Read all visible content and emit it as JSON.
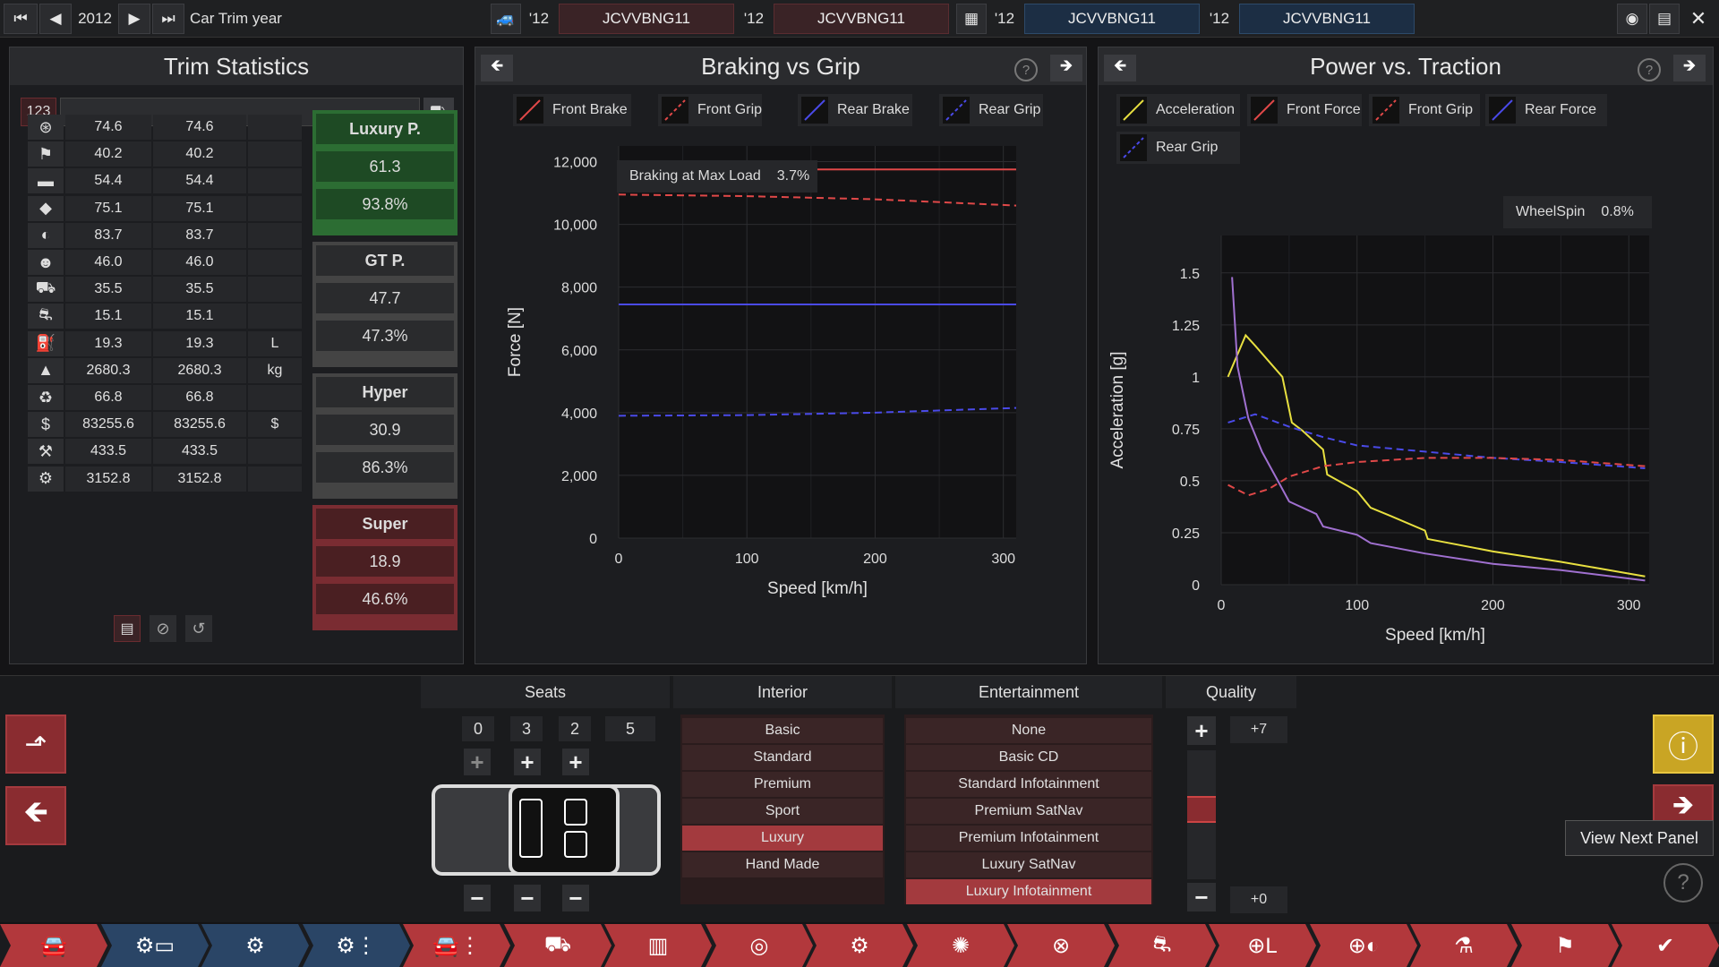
{
  "topbar": {
    "year": "2012",
    "title": "Car Trim year",
    "compare": [
      {
        "year": "'12",
        "name": "JCVVBNG11"
      },
      {
        "year": "'12",
        "name": "JCVVBNG11"
      },
      {
        "year": "'12",
        "name": "JCVVBNG11"
      },
      {
        "year": "'12",
        "name": "JCVVBNG11"
      }
    ]
  },
  "trim_stats": {
    "title": "Trim Statistics",
    "search_badge": "123",
    "search_value": "",
    "rows": [
      {
        "icon": "steering-wheel-icon",
        "a": "74.6",
        "b": "74.6",
        "unit": ""
      },
      {
        "icon": "race-flag-icon",
        "a": "40.2",
        "b": "40.2",
        "unit": ""
      },
      {
        "icon": "seat-icon",
        "a": "54.4",
        "b": "54.4",
        "unit": ""
      },
      {
        "icon": "diamond-icon",
        "a": "75.1",
        "b": "75.1",
        "unit": ""
      },
      {
        "icon": "safety-icon",
        "a": "83.7",
        "b": "83.7",
        "unit": ""
      },
      {
        "icon": "passengers-icon",
        "a": "46.0",
        "b": "46.0",
        "unit": ""
      },
      {
        "icon": "cargo-car-icon",
        "a": "35.5",
        "b": "35.5",
        "unit": ""
      },
      {
        "icon": "offroad-car-icon",
        "a": "15.1",
        "b": "15.1",
        "unit": ""
      },
      {
        "icon": "fuel-tank-icon",
        "a": "19.3",
        "b": "19.3",
        "unit": "L"
      },
      {
        "icon": "weight-icon",
        "a": "2680.3",
        "b": "2680.3",
        "unit": "kg"
      },
      {
        "icon": "environment-icon",
        "a": "66.8",
        "b": "66.8",
        "unit": ""
      },
      {
        "icon": "cost-icon",
        "a": "83255.6",
        "b": "83255.6",
        "unit": "$"
      },
      {
        "icon": "manufacturing-icon",
        "a": "433.5",
        "b": "433.5",
        "unit": ""
      },
      {
        "icon": "engineering-icon",
        "a": "3152.8",
        "b": "3152.8",
        "unit": ""
      }
    ],
    "markets": [
      {
        "name": "Luxury P.",
        "score": "61.3",
        "pct": "93.8%",
        "color": "#1e4a24",
        "border": "#2c6d33"
      },
      {
        "name": "GT P.",
        "score": "47.7",
        "pct": "47.3%",
        "color": "#2a2b2d",
        "border": "#444"
      },
      {
        "name": "Hyper",
        "score": "30.9",
        "pct": "86.3%",
        "color": "#2a2b2d",
        "border": "#444"
      },
      {
        "name": "Super",
        "score": "18.9",
        "pct": "46.6%",
        "color": "#4a1f22",
        "border": "#7a2c32"
      }
    ]
  },
  "braking": {
    "title": "Braking vs Grip",
    "legend": [
      {
        "label": "Front Brake",
        "color": "#e04848",
        "dashed": false
      },
      {
        "label": "Front Grip",
        "color": "#e04848",
        "dashed": true
      },
      {
        "label": "Rear Brake",
        "color": "#4a4ae8",
        "dashed": false
      },
      {
        "label": "Rear Grip",
        "color": "#4a4ae8",
        "dashed": true
      }
    ],
    "annotation_label": "Braking at Max Load",
    "annotation_value": "3.7%"
  },
  "power": {
    "title": "Power vs. Traction",
    "legend": [
      {
        "label": "Acceleration",
        "color": "#e8e040",
        "dashed": false
      },
      {
        "label": "Front Force",
        "color": "#e04848",
        "dashed": false
      },
      {
        "label": "Front Grip",
        "color": "#e04848",
        "dashed": true
      },
      {
        "label": "Rear Force",
        "color": "#4a4ae8",
        "dashed": false
      },
      {
        "label": "Rear Grip",
        "color": "#4a4ae8",
        "dashed": true
      }
    ],
    "annotation_label": "WheelSpin",
    "annotation_value": "0.8%"
  },
  "chart_data": [
    {
      "type": "line",
      "title": "Braking vs Grip",
      "xlabel": "Speed [km/h]",
      "ylabel": "Force [N]",
      "xlim": [
        0,
        310
      ],
      "ylim": [
        0,
        12500
      ],
      "xticks": [
        "0",
        "100",
        "200",
        "300"
      ],
      "yticks": [
        "0",
        "2,000",
        "4,000",
        "6,000",
        "8,000",
        "10,000",
        "12,000"
      ],
      "series": [
        {
          "name": "Front Brake",
          "color": "#e04848",
          "dashed": false,
          "x": [
            0,
            310
          ],
          "y": [
            11750,
            11750
          ]
        },
        {
          "name": "Front Grip",
          "color": "#e04848",
          "dashed": true,
          "x": [
            0,
            100,
            200,
            310
          ],
          "y": [
            10950,
            10900,
            10800,
            10600
          ]
        },
        {
          "name": "Rear Brake",
          "color": "#4a4ae8",
          "dashed": false,
          "x": [
            0,
            310
          ],
          "y": [
            7450,
            7450
          ]
        },
        {
          "name": "Rear Grip",
          "color": "#4a4ae8",
          "dashed": true,
          "x": [
            0,
            100,
            200,
            310
          ],
          "y": [
            3900,
            3920,
            4000,
            4150
          ]
        }
      ]
    },
    {
      "type": "line",
      "title": "Power vs. Traction",
      "xlabel": "Speed [km/h]",
      "ylabel": "Acceleration [g]",
      "xlim": [
        0,
        315
      ],
      "ylim": [
        0,
        1.68
      ],
      "xticks": [
        "0",
        "100",
        "200",
        "300"
      ],
      "yticks": [
        "0",
        "0.25",
        "0.5",
        "0.75",
        "1",
        "1.25",
        "1.5"
      ],
      "series": [
        {
          "name": "Acceleration",
          "color": "#e8e040",
          "dashed": false,
          "x": [
            5,
            18,
            25,
            45,
            52,
            60,
            75,
            78,
            100,
            110,
            125,
            150,
            152,
            200,
            250,
            312
          ],
          "y": [
            1.0,
            1.2,
            1.15,
            1.0,
            0.78,
            0.74,
            0.65,
            0.53,
            0.45,
            0.37,
            0.33,
            0.26,
            0.22,
            0.16,
            0.11,
            0.04
          ]
        },
        {
          "name": "Rear Force",
          "color": "#a070d0",
          "dashed": false,
          "x": [
            8,
            12,
            20,
            30,
            40,
            50,
            70,
            75,
            100,
            110,
            150,
            200,
            250,
            312
          ],
          "y": [
            1.48,
            1.05,
            0.8,
            0.64,
            0.52,
            0.4,
            0.34,
            0.28,
            0.24,
            0.2,
            0.15,
            0.1,
            0.07,
            0.02
          ]
        },
        {
          "name": "Rear Grip",
          "color": "#4a4ae8",
          "dashed": true,
          "x": [
            5,
            25,
            50,
            75,
            100,
            150,
            200,
            250,
            312
          ],
          "y": [
            0.78,
            0.82,
            0.76,
            0.71,
            0.67,
            0.64,
            0.61,
            0.59,
            0.56
          ]
        },
        {
          "name": "Front Grip",
          "color": "#e04848",
          "dashed": true,
          "x": [
            5,
            20,
            35,
            50,
            75,
            100,
            150,
            200,
            250,
            312
          ],
          "y": [
            0.48,
            0.43,
            0.46,
            0.52,
            0.57,
            0.59,
            0.61,
            0.61,
            0.6,
            0.57
          ]
        }
      ]
    }
  ],
  "seats": {
    "title": "Seats",
    "counts": [
      "0",
      "3",
      "2",
      "5"
    ]
  },
  "interior": {
    "title": "Interior",
    "options": [
      "Basic",
      "Standard",
      "Premium",
      "Sport",
      "Luxury",
      "Hand Made"
    ],
    "selected": "Luxury"
  },
  "entertainment": {
    "title": "Entertainment",
    "options": [
      "None",
      "Basic CD",
      "Standard Infotainment",
      "Premium SatNav",
      "Premium Infotainment",
      "Luxury SatNav",
      "Luxury Infotainment"
    ],
    "selected": "Luxury Infotainment"
  },
  "quality": {
    "title": "Quality",
    "max": "+7",
    "min": "+0",
    "level": 0.55
  },
  "tooltip": "View Next Panel",
  "nav_tabs": [
    {
      "icon": "car-body-icon",
      "color": "#b2383c"
    },
    {
      "icon": "engine-family-icon",
      "color": "#2a4566"
    },
    {
      "icon": "engine-icon",
      "color": "#2a4566"
    },
    {
      "icon": "engine-tune-icon",
      "color": "#2a4566"
    },
    {
      "icon": "trim-icon",
      "color": "#b2383c"
    },
    {
      "icon": "chassis-icon",
      "color": "#b2383c"
    },
    {
      "icon": "suspension-icon",
      "color": "#b2383c"
    },
    {
      "icon": "drivetrain-icon",
      "color": "#b2383c"
    },
    {
      "icon": "gearbox-icon",
      "color": "#b2383c"
    },
    {
      "icon": "brakes-icon",
      "color": "#b2383c"
    },
    {
      "icon": "wheels-icon",
      "color": "#b2383c"
    },
    {
      "icon": "aero-icon",
      "color": "#b2383c"
    },
    {
      "icon": "interior-icon",
      "color": "#b2383c"
    },
    {
      "icon": "safety-tab-icon",
      "color": "#b2383c"
    },
    {
      "icon": "testing-icon",
      "color": "#b2383c"
    },
    {
      "icon": "track-icon",
      "color": "#b2383c"
    },
    {
      "icon": "finish-checkmark-icon",
      "color": "#b2383c"
    }
  ]
}
